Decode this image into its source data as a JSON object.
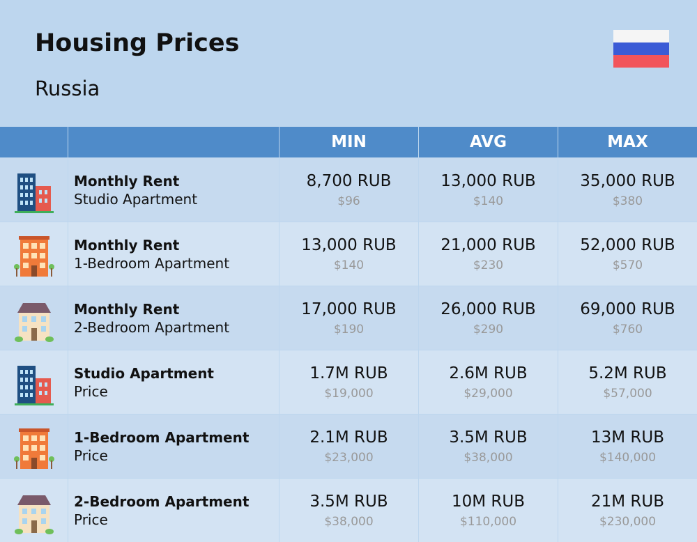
{
  "header": {
    "title": "Housing Prices",
    "subtitle": "Russia"
  },
  "table": {
    "columns": [
      "MIN",
      "AVG",
      "MAX"
    ],
    "rows": [
      {
        "title": "Monthly Rent",
        "subtitle": "Studio Apartment",
        "icon": "tower",
        "cells": [
          {
            "main": "8,700 RUB",
            "usd": "$96"
          },
          {
            "main": "13,000 RUB",
            "usd": "$140"
          },
          {
            "main": "35,000 RUB",
            "usd": "$380"
          }
        ]
      },
      {
        "title": "Monthly Rent",
        "subtitle": "1-Bedroom Apartment",
        "icon": "brick",
        "cells": [
          {
            "main": "13,000 RUB",
            "usd": "$140"
          },
          {
            "main": "21,000 RUB",
            "usd": "$230"
          },
          {
            "main": "52,000 RUB",
            "usd": "$570"
          }
        ]
      },
      {
        "title": "Monthly Rent",
        "subtitle": "2-Bedroom Apartment",
        "icon": "house",
        "cells": [
          {
            "main": "17,000 RUB",
            "usd": "$190"
          },
          {
            "main": "26,000 RUB",
            "usd": "$290"
          },
          {
            "main": "69,000 RUB",
            "usd": "$760"
          }
        ]
      },
      {
        "title": "Studio Apartment",
        "subtitle": "Price",
        "icon": "tower",
        "cells": [
          {
            "main": "1.7M RUB",
            "usd": "$19,000"
          },
          {
            "main": "2.6M RUB",
            "usd": "$29,000"
          },
          {
            "main": "5.2M RUB",
            "usd": "$57,000"
          }
        ]
      },
      {
        "title": "1-Bedroom Apartment",
        "subtitle": "Price",
        "icon": "brick",
        "cells": [
          {
            "main": "2.1M RUB",
            "usd": "$23,000"
          },
          {
            "main": "3.5M RUB",
            "usd": "$38,000"
          },
          {
            "main": "13M RUB",
            "usd": "$140,000"
          }
        ]
      },
      {
        "title": "2-Bedroom Apartment",
        "subtitle": "Price",
        "icon": "house",
        "cells": [
          {
            "main": "3.5M RUB",
            "usd": "$38,000"
          },
          {
            "main": "10M RUB",
            "usd": "$110,000"
          },
          {
            "main": "21M RUB",
            "usd": "$230,000"
          }
        ]
      }
    ]
  }
}
